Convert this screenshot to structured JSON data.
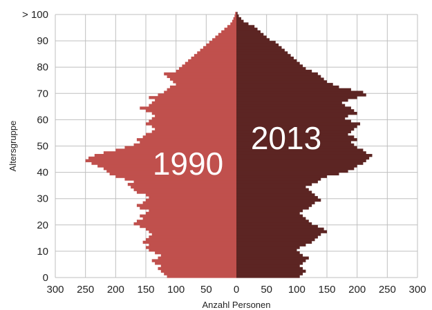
{
  "chart_data": {
    "type": "bar",
    "orientation": "horizontal",
    "layout": "population-pyramid",
    "xlabel": "Anzahl Personen",
    "ylabel": "Altersgruppe",
    "xlim": [
      -300,
      300
    ],
    "ylim": [
      0,
      100
    ],
    "x_tick_labels": [
      "300",
      "250",
      "200",
      "150",
      "100",
      "50",
      "0",
      "50",
      "100",
      "150",
      "200",
      "250",
      "300"
    ],
    "y_tick_labels": [
      "0",
      "10",
      "20",
      "30",
      "40",
      "50",
      "60",
      "70",
      "80",
      "90",
      "> 100"
    ],
    "grid": true,
    "ages": [
      0,
      1,
      2,
      3,
      4,
      5,
      6,
      7,
      8,
      9,
      10,
      11,
      12,
      13,
      14,
      15,
      16,
      17,
      18,
      19,
      20,
      21,
      22,
      23,
      24,
      25,
      26,
      27,
      28,
      29,
      30,
      31,
      32,
      33,
      34,
      35,
      36,
      37,
      38,
      39,
      40,
      41,
      42,
      43,
      44,
      45,
      46,
      47,
      48,
      49,
      50,
      51,
      52,
      53,
      54,
      55,
      56,
      57,
      58,
      59,
      60,
      61,
      62,
      63,
      64,
      65,
      66,
      67,
      68,
      69,
      70,
      71,
      72,
      73,
      74,
      75,
      76,
      77,
      78,
      79,
      80,
      81,
      82,
      83,
      84,
      85,
      86,
      87,
      88,
      89,
      90,
      91,
      92,
      93,
      94,
      95,
      96,
      97,
      98,
      99,
      100
    ],
    "series": [
      {
        "name": "1990",
        "side": "left",
        "color": "#c0504d",
        "values": [
          115,
          120,
          125,
          130,
          125,
          135,
          140,
          130,
          125,
          135,
          145,
          150,
          145,
          155,
          150,
          145,
          140,
          145,
          150,
          160,
          170,
          165,
          155,
          160,
          150,
          145,
          160,
          165,
          155,
          150,
          145,
          150,
          165,
          170,
          175,
          180,
          170,
          185,
          200,
          210,
          215,
          220,
          230,
          240,
          250,
          245,
          235,
          220,
          200,
          185,
          170,
          160,
          165,
          155,
          150,
          140,
          135,
          140,
          150,
          145,
          140,
          135,
          140,
          150,
          160,
          145,
          140,
          135,
          145,
          130,
          120,
          115,
          110,
          100,
          105,
          110,
          115,
          120,
          100,
          95,
          90,
          85,
          80,
          75,
          70,
          65,
          60,
          55,
          50,
          45,
          40,
          35,
          30,
          25,
          20,
          15,
          10,
          7,
          5,
          3,
          2
        ]
      },
      {
        "name": "2013",
        "side": "right",
        "color": "#5c2523",
        "values": [
          105,
          110,
          115,
          110,
          105,
          110,
          115,
          120,
          110,
          105,
          100,
          105,
          115,
          125,
          130,
          135,
          140,
          150,
          145,
          135,
          125,
          120,
          115,
          110,
          105,
          110,
          120,
          125,
          130,
          140,
          135,
          130,
          125,
          120,
          115,
          125,
          135,
          140,
          150,
          170,
          185,
          195,
          200,
          210,
          215,
          220,
          225,
          215,
          210,
          200,
          195,
          190,
          200,
          195,
          185,
          190,
          195,
          200,
          205,
          190,
          180,
          185,
          200,
          195,
          190,
          180,
          175,
          185,
          200,
          215,
          210,
          190,
          170,
          160,
          150,
          145,
          140,
          135,
          125,
          115,
          110,
          105,
          100,
          95,
          90,
          85,
          80,
          75,
          70,
          65,
          55,
          50,
          45,
          40,
          35,
          30,
          20,
          12,
          8,
          4,
          2
        ]
      }
    ],
    "annotations": [
      "1990",
      "2013"
    ]
  }
}
